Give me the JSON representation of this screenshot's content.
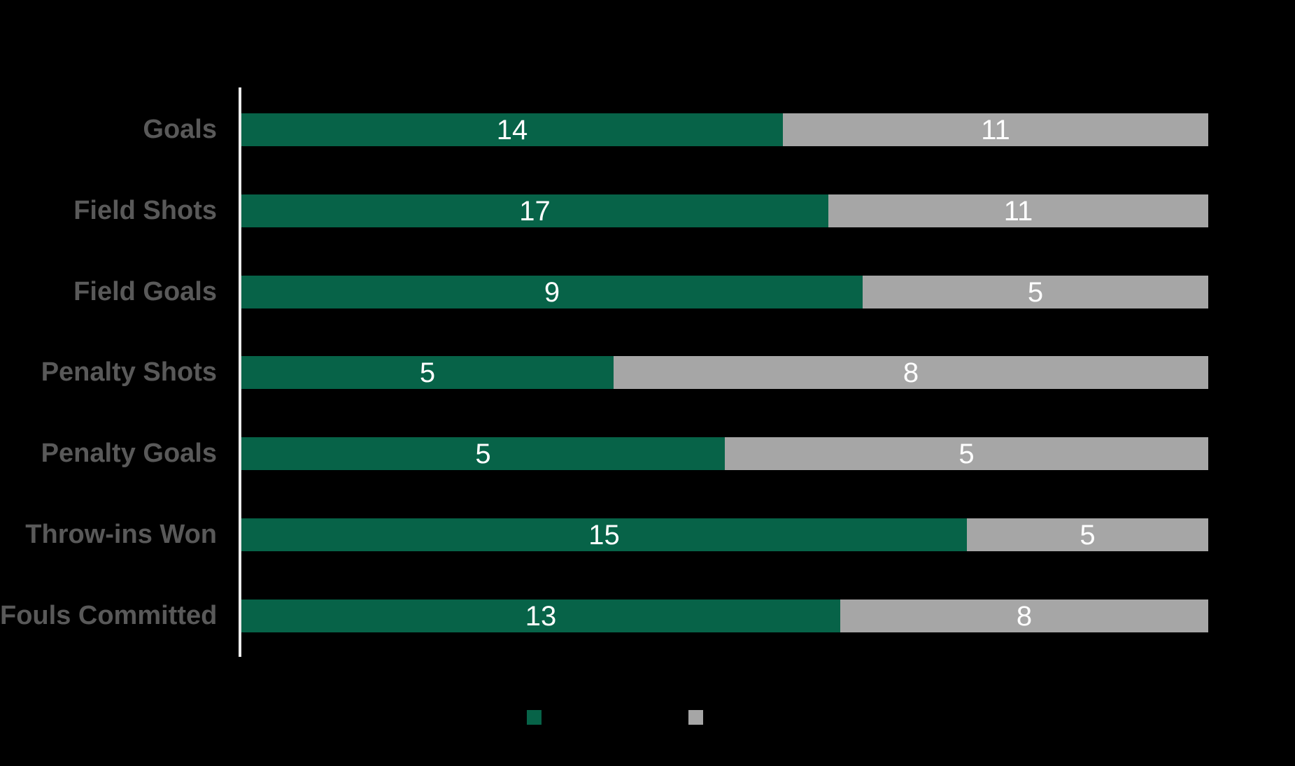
{
  "colors": {
    "background": "#000000",
    "series_green": "#076348",
    "series_gray": "#a6a6a6",
    "category_label": "#595959",
    "value_label": "#ffffff",
    "axis_line": "#ececec"
  },
  "chart_data": {
    "type": "bar",
    "subtype": "horizontal-100pct-stacked",
    "categories": [
      "Goals",
      "Field Shots",
      "Field Goals",
      "Penalty Shots",
      "Penalty Goals",
      "Throw-ins Won",
      "Fouls Committed"
    ],
    "series": [
      {
        "name": "green",
        "color": "#076348",
        "values": [
          14,
          17,
          9,
          5,
          5,
          15,
          13
        ]
      },
      {
        "name": "gray",
        "color": "#a6a6a6",
        "values": [
          11,
          11,
          5,
          8,
          5,
          5,
          8
        ]
      }
    ],
    "value_labels": {
      "green": [
        "14",
        "17",
        "9",
        "5",
        "5",
        "15",
        "13"
      ],
      "gray": [
        "11",
        "11",
        "5",
        "8",
        "5",
        "5",
        "8"
      ]
    },
    "title": "",
    "xlabel": "",
    "ylabel": "",
    "grid": false,
    "legend_position": "bottom",
    "legend": [
      {
        "name": "green",
        "color": "#076348"
      },
      {
        "name": "gray",
        "color": "#a6a6a6"
      }
    ]
  }
}
